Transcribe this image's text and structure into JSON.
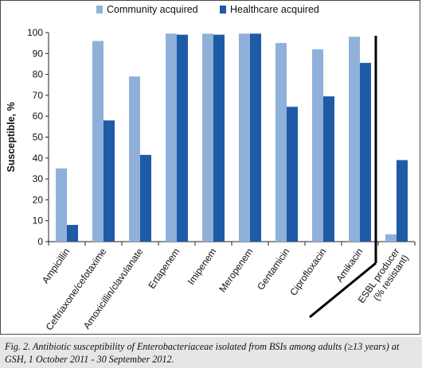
{
  "caption": "Fig. 2. Antibiotic susceptibility of Enterobacteriaceae isolated from BSIs among adults (≥13 years) at GSH, 1 October 2011 - 30 September 2012.",
  "chart_data": {
    "type": "bar",
    "ylabel": "Susceptible, %",
    "ylim": [
      0,
      100
    ],
    "yticks": [
      0,
      10,
      20,
      30,
      40,
      50,
      60,
      70,
      80,
      90,
      100
    ],
    "grid": false,
    "legend_position": "top",
    "categories": [
      "Ampicillin",
      "Ceftriaxone/cefotaxime",
      "Amoxicillin/clavulanate",
      "Ertapenem",
      "Imipenem",
      "Meropenem",
      "Gentamicin",
      "Ciprofloxacin",
      "Amikacin",
      "ESBL producer\n(% resistant)"
    ],
    "series": [
      {
        "name": "Community acquired",
        "color": "#8fb1d9",
        "values": [
          35,
          96,
          79,
          99.5,
          99.5,
          99.5,
          95,
          92,
          98,
          3.5
        ]
      },
      {
        "name": "Healthcare acquired",
        "color": "#1f5aa6",
        "values": [
          8,
          58,
          41.5,
          99,
          99,
          99.5,
          64.5,
          69.5,
          85.5,
          39
        ]
      }
    ]
  }
}
